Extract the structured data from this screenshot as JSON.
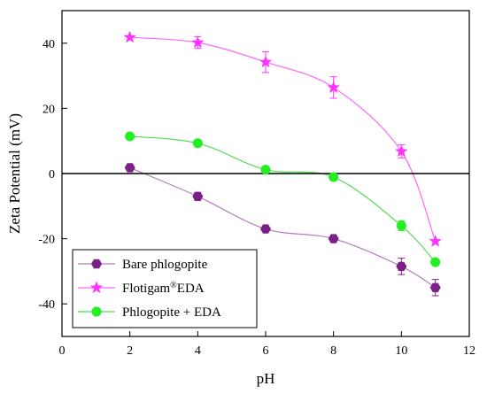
{
  "chart_data": {
    "type": "line",
    "xlabel": "pH",
    "ylabel": "Zeta Potential (mV)",
    "xlim": [
      0,
      12
    ],
    "ylim": [
      -50,
      50
    ],
    "xticks": [
      0,
      2,
      4,
      6,
      8,
      10,
      12
    ],
    "yticks": [
      -40,
      -20,
      0,
      20,
      40
    ],
    "reference_line_y": 0,
    "grid": false,
    "legend_position": "bottom-left",
    "series": [
      {
        "name": "Bare phlogopite",
        "name_parts": [
          "Bare phlogopite"
        ],
        "color": "#7b1f86",
        "line_color": "#b57bbd",
        "marker": "hexagon",
        "x": [
          2,
          4,
          6,
          8,
          10,
          11
        ],
        "y": [
          1.8,
          -7,
          -17,
          -20,
          -28.5,
          -35
        ],
        "err": [
          0,
          1.2,
          0,
          0,
          2.5,
          2.5
        ]
      },
      {
        "name": "Flotigam®EDA",
        "name_parts": [
          "Flotigam",
          "®",
          "EDA"
        ],
        "color": "#ff33ff",
        "line_color": "#ff66ff",
        "marker": "star",
        "x": [
          2,
          4,
          6,
          8,
          10,
          11
        ],
        "y": [
          41.8,
          40.2,
          34.2,
          26.4,
          6.8,
          -20.8
        ],
        "err": [
          0,
          1.8,
          3.2,
          3.3,
          2,
          0
        ]
      },
      {
        "name": "Phlogopite + EDA",
        "name_parts": [
          "Phlogopite + EDA"
        ],
        "color": "#22ee22",
        "line_color": "#55dd55",
        "marker": "circle",
        "x": [
          2,
          4,
          6,
          8,
          10,
          11
        ],
        "y": [
          11.4,
          9.3,
          1.2,
          -1.1,
          -16,
          -27.2
        ],
        "err": [
          0,
          0,
          0,
          0,
          1.5,
          0
        ]
      }
    ]
  }
}
